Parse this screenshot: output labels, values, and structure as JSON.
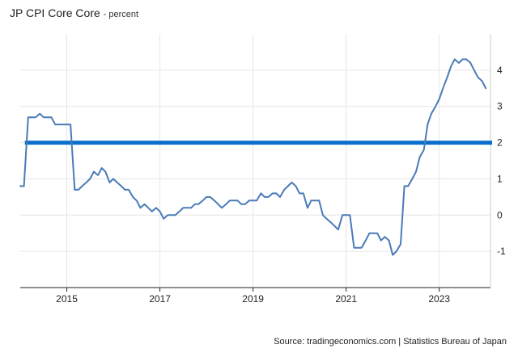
{
  "chart": {
    "title": "JP CPI Core Core",
    "subtitle": "- percent",
    "source": "Source: tradingeconomics.com | Statistics Bureau of Japan"
  },
  "colors": {
    "line": "#4a7bb7",
    "target": "#0a6ecc",
    "grid": "#e6e6e6",
    "axis": "#222222"
  },
  "chart_data": {
    "type": "line",
    "title": "JP CPI Core Core",
    "subtitle": "- percent",
    "xlabel": "",
    "ylabel": "",
    "xlim": [
      2014.0,
      2024.1
    ],
    "ylim": [
      -2.0,
      5.0
    ],
    "x_ticks": [
      2015,
      2017,
      2019,
      2021,
      2023
    ],
    "x_tick_labels": [
      "2015",
      "2017",
      "2019",
      "2021",
      "2023"
    ],
    "y_ticks": [
      -1,
      0,
      1,
      2,
      3,
      4
    ],
    "y_tick_labels": [
      "-1",
      "0",
      "1",
      "2",
      "3",
      "4"
    ],
    "grid": true,
    "legend": "none",
    "reference_line": {
      "y": 2.0,
      "label": "2"
    },
    "series": [
      {
        "x": [
          2014.0,
          2014.08,
          2014.17,
          2014.25,
          2014.33,
          2014.42,
          2014.5,
          2014.58,
          2014.67,
          2014.75,
          2014.83,
          2014.92,
          2015.0,
          2015.08,
          2015.17,
          2015.25,
          2015.33,
          2015.42,
          2015.5,
          2015.58,
          2015.67,
          2015.75,
          2015.83,
          2015.92,
          2016.0,
          2016.08,
          2016.17,
          2016.25,
          2016.33,
          2016.42,
          2016.5,
          2016.58,
          2016.67,
          2016.75,
          2016.83,
          2016.92,
          2017.0,
          2017.08,
          2017.17,
          2017.25,
          2017.33,
          2017.42,
          2017.5,
          2017.58,
          2017.67,
          2017.75,
          2017.83,
          2017.92,
          2018.0,
          2018.08,
          2018.17,
          2018.25,
          2018.33,
          2018.42,
          2018.5,
          2018.58,
          2018.67,
          2018.75,
          2018.83,
          2018.92,
          2019.0,
          2019.08,
          2019.17,
          2019.25,
          2019.33,
          2019.42,
          2019.5,
          2019.58,
          2019.67,
          2019.75,
          2019.83,
          2019.92,
          2020.0,
          2020.08,
          2020.17,
          2020.25,
          2020.33,
          2020.42,
          2020.5,
          2020.58,
          2020.67,
          2020.75,
          2020.83,
          2020.92,
          2021.0,
          2021.08,
          2021.17,
          2021.25,
          2021.33,
          2021.42,
          2021.5,
          2021.58,
          2021.67,
          2021.75,
          2021.83,
          2021.92,
          2022.0,
          2022.08,
          2022.17,
          2022.25,
          2022.33,
          2022.42,
          2022.5,
          2022.58,
          2022.67,
          2022.75,
          2022.83,
          2022.92,
          2023.0,
          2023.08,
          2023.17,
          2023.25,
          2023.33,
          2023.42,
          2023.5,
          2023.58,
          2023.67,
          2023.75,
          2023.83,
          2023.92,
          2024.0
        ],
        "values": [
          0.8,
          0.8,
          2.7,
          2.7,
          2.7,
          2.8,
          2.7,
          2.7,
          2.7,
          2.5,
          2.5,
          2.5,
          2.5,
          2.5,
          0.7,
          0.7,
          0.8,
          0.9,
          1.0,
          1.2,
          1.1,
          1.3,
          1.2,
          0.9,
          1.0,
          0.9,
          0.8,
          0.7,
          0.7,
          0.5,
          0.4,
          0.2,
          0.3,
          0.2,
          0.1,
          0.2,
          0.1,
          -0.1,
          0.0,
          0.0,
          0.0,
          0.1,
          0.2,
          0.2,
          0.2,
          0.3,
          0.3,
          0.4,
          0.5,
          0.5,
          0.4,
          0.3,
          0.2,
          0.3,
          0.4,
          0.4,
          0.4,
          0.3,
          0.3,
          0.4,
          0.4,
          0.4,
          0.6,
          0.5,
          0.5,
          0.6,
          0.6,
          0.5,
          0.7,
          0.8,
          0.9,
          0.8,
          0.6,
          0.6,
          0.2,
          0.4,
          0.4,
          0.4,
          0.0,
          -0.1,
          -0.2,
          -0.3,
          -0.4,
          0.0,
          0.0,
          0.0,
          -0.9,
          -0.9,
          -0.9,
          -0.7,
          -0.5,
          -0.5,
          -0.5,
          -0.7,
          -0.6,
          -0.7,
          -1.1,
          -1.0,
          -0.8,
          0.8,
          0.8,
          1.0,
          1.2,
          1.6,
          1.8,
          2.5,
          2.8,
          3.0,
          3.2,
          3.5,
          3.8,
          4.1,
          4.3,
          4.2,
          4.3,
          4.3,
          4.2,
          4.0,
          3.8,
          3.7,
          3.5
        ]
      }
    ]
  }
}
